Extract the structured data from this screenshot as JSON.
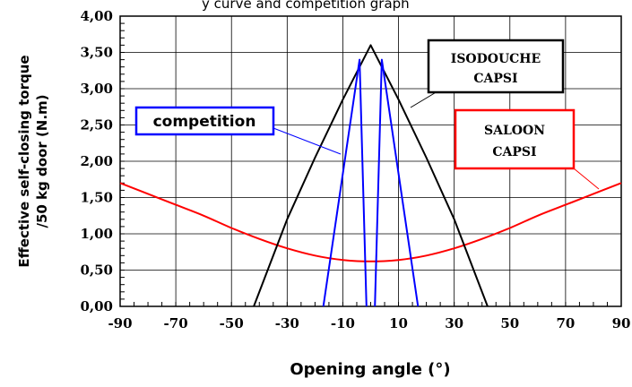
{
  "header_text": "y curve and competition graph",
  "chart_data": {
    "type": "line",
    "title": "",
    "xlabel": "Opening angle (°)",
    "ylabel": [
      "Effective self-closing torque",
      "/50 kg door (N.m)"
    ],
    "xlim": [
      -90,
      90
    ],
    "ylim": [
      0,
      4
    ],
    "xticks": [
      -90,
      -70,
      -50,
      -30,
      -10,
      10,
      30,
      50,
      70,
      90
    ],
    "xtick_labels": [
      "-90",
      "-70",
      "-50",
      "-30",
      "-10",
      "10",
      "30",
      "50",
      "70",
      "90"
    ],
    "yticks": [
      0,
      0.5,
      1,
      1.5,
      2,
      2.5,
      3,
      3.5,
      4
    ],
    "ytick_labels": [
      "0,00",
      "0,50",
      "1,00",
      "1,50",
      "2,00",
      "2,50",
      "3,00",
      "3,50",
      "4,00"
    ],
    "grid": true,
    "series": [
      {
        "name": "SALOON CAPSI",
        "color": "#ff0000",
        "x": [
          -90,
          -80,
          -70,
          -60,
          -50,
          -40,
          -30,
          -20,
          -10,
          0,
          10,
          20,
          30,
          40,
          50,
          60,
          70,
          80,
          90
        ],
        "y": [
          1.7,
          1.55,
          1.4,
          1.25,
          1.08,
          0.93,
          0.8,
          0.7,
          0.64,
          0.62,
          0.64,
          0.7,
          0.8,
          0.93,
          1.08,
          1.25,
          1.4,
          1.55,
          1.7
        ]
      },
      {
        "name": "ISODOUCHE CAPSI",
        "color": "#000000",
        "x": [
          -42,
          -30,
          -20,
          -10,
          0,
          10,
          20,
          30,
          42
        ],
        "y": [
          0.0,
          1.2,
          2.05,
          2.85,
          3.6,
          2.85,
          2.05,
          1.2,
          0.0
        ]
      },
      {
        "name": "competition",
        "color": "#0000ff",
        "segments": [
          {
            "x": [
              -17,
              -4,
              -1.5
            ],
            "y": [
              0.0,
              3.4,
              0.0
            ]
          },
          {
            "x": [
              1.5,
              4,
              17
            ],
            "y": [
              0.0,
              3.4,
              0.0
            ]
          }
        ]
      }
    ],
    "labels": [
      {
        "lines": [
          "ISODOUCHE",
          "CAPSI"
        ],
        "color": "#000000"
      },
      {
        "lines": [
          "SALOON",
          "CAPSI"
        ],
        "color": "#ff0000"
      },
      {
        "lines": [
          "competition"
        ],
        "color": "#0000ff"
      }
    ]
  }
}
